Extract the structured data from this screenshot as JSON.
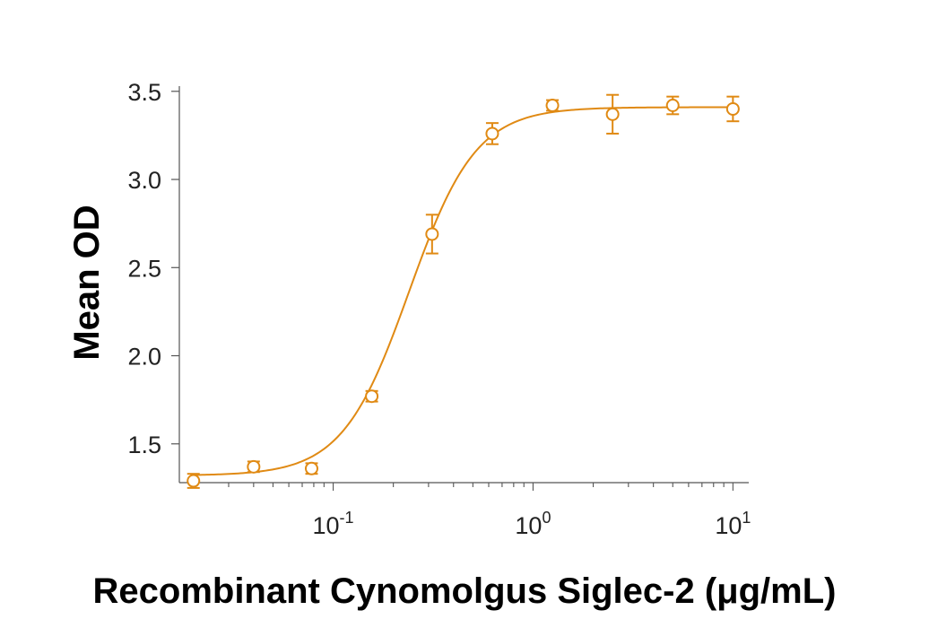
{
  "chart_data": {
    "type": "scatter",
    "xlabel": "Recombinant Cynomolgus Siglec-2 (μg/mL)",
    "ylabel": "Mean OD",
    "x_scale": "log",
    "xlim": [
      0.017,
      12
    ],
    "ylim": [
      1.28,
      3.56
    ],
    "y_ticks": [
      {
        "value": 1.5,
        "label": "1.5"
      },
      {
        "value": 2.0,
        "label": "2.0"
      },
      {
        "value": 2.5,
        "label": "2.5"
      },
      {
        "value": 3.0,
        "label": "3.0"
      },
      {
        "value": 3.5,
        "label": "3.5"
      }
    ],
    "x_ticks": [
      {
        "value": 0.1,
        "base": "10",
        "exp": "-1"
      },
      {
        "value": 1,
        "base": "10",
        "exp": "0"
      },
      {
        "value": 10,
        "base": "10",
        "exp": "1"
      }
    ],
    "series": [
      {
        "color": "#e08a14",
        "marker": "open-circle",
        "points": [
          {
            "x": 0.02,
            "y": 1.29,
            "err": 0.04
          },
          {
            "x": 0.04,
            "y": 1.37,
            "err": 0.03
          },
          {
            "x": 0.078,
            "y": 1.36,
            "err": 0.03
          },
          {
            "x": 0.156,
            "y": 1.77,
            "err": 0.03
          },
          {
            "x": 0.3125,
            "y": 2.69,
            "err": 0.11
          },
          {
            "x": 0.625,
            "y": 3.26,
            "err": 0.06
          },
          {
            "x": 1.25,
            "y": 3.42,
            "err": 0.03
          },
          {
            "x": 2.5,
            "y": 3.37,
            "err": 0.11
          },
          {
            "x": 5,
            "y": 3.42,
            "err": 0.05
          },
          {
            "x": 10,
            "y": 3.4,
            "err": 0.07
          }
        ],
        "fit": {
          "bottom": 1.32,
          "top": 3.41,
          "ec50": 0.24,
          "hill": 2.6
        }
      }
    ]
  }
}
